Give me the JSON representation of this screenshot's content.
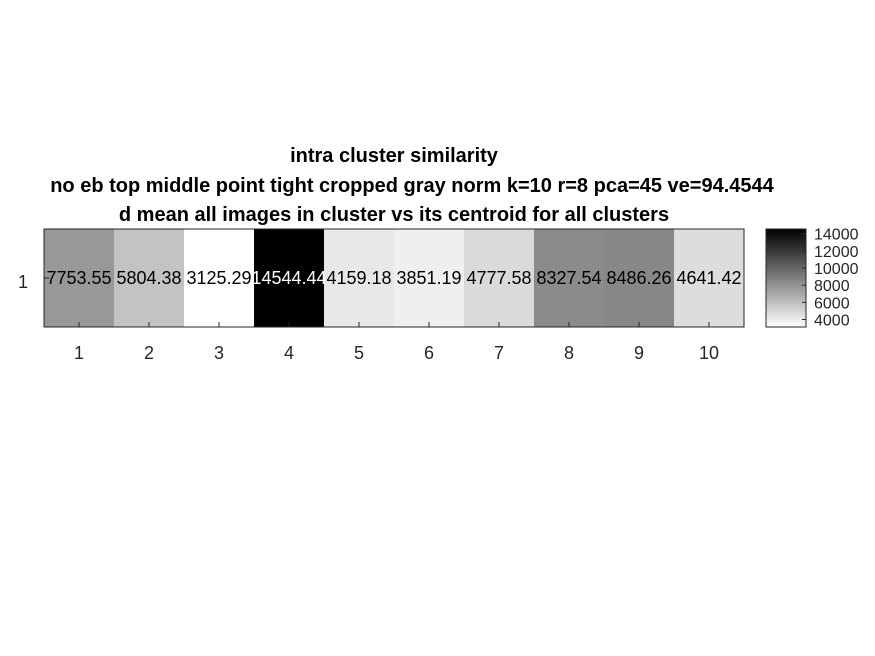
{
  "chart_data": {
    "type": "heatmap",
    "title": [
      "intra cluster similarity",
      "no eb top middle point tight cropped gray norm k=10 r=8 pca=45 ve=94.4544",
      "d mean all images in cluster vs its centroid for all clusters"
    ],
    "x_categories": [
      "1",
      "2",
      "3",
      "4",
      "5",
      "6",
      "7",
      "8",
      "9",
      "10"
    ],
    "y_categories": [
      "1"
    ],
    "values": [
      [
        7753.55,
        5804.38,
        3125.29,
        14544.44,
        4159.18,
        3851.19,
        4777.58,
        8327.54,
        8486.26,
        4641.42
      ]
    ],
    "cell_labels": [
      "7753.55",
      "5804.38",
      "3125.29",
      "14544.44",
      "4159.18",
      "3851.19",
      "4777.58",
      "8327.54",
      "8486.26",
      "4641.42"
    ],
    "colormap": "gray-reversed",
    "color_low": "#ffffff",
    "color_high": "#000000",
    "clim": [
      3125.29,
      14544.44
    ],
    "colorbar": {
      "ticks": [
        "14000",
        "12000",
        "10000",
        "8000",
        "6000",
        "4000"
      ],
      "tick_values": [
        14000,
        12000,
        10000,
        8000,
        6000,
        4000
      ]
    },
    "grid": false,
    "legend": "colorbar-right"
  }
}
